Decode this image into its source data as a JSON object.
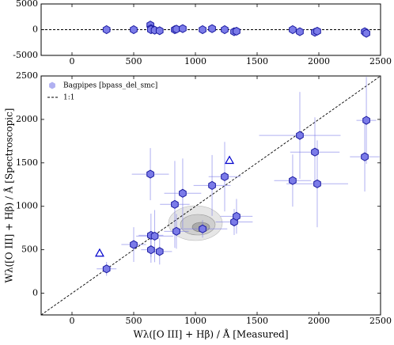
{
  "chart_data": [
    {
      "type": "scatter",
      "xlim": [
        -250,
        2500
      ],
      "xticks": [
        0,
        500,
        1000,
        1500,
        2000,
        2500
      ],
      "ylim": [
        -5000,
        5000
      ],
      "yticks": [
        -5000,
        0,
        5000
      ],
      "reference_line": 0,
      "series": [
        {
          "color": "#7b7be8",
          "edge": "#1a1aa0",
          "marker": "hexagon",
          "x": [
            280,
            500,
            635,
            640,
            640,
            670,
            710,
            833,
            846,
            897,
            1058,
            1135,
            1237,
            1314,
            1333,
            1788,
            1846,
            1968,
            1987,
            2372,
            2385
          ],
          "values": [
            0,
            0,
            900,
            200,
            0,
            -100,
            -200,
            0,
            100,
            200,
            0,
            200,
            0,
            -400,
            -300,
            0,
            -400,
            -500,
            -300,
            -400,
            -700
          ]
        }
      ]
    },
    {
      "type": "scatter",
      "xlabel": "Wλ([O III] + Hβ) / Å  [Measured]",
      "ylabel": "Wλ([O III] + Hβ) / Å  [Spectroscopic]",
      "xlim": [
        -250,
        2500
      ],
      "xticks": [
        0,
        500,
        1000,
        1500,
        2000,
        2500
      ],
      "ylim": [
        -250,
        2500
      ],
      "yticks": [
        0,
        500,
        1000,
        1500,
        2000,
        2500
      ],
      "legend": "upper left",
      "reference_name": "1:1",
      "series": [
        {
          "name": "Bagpipes [bpass_del_smc]",
          "color": "#7b7be8",
          "edge": "#1a1aa0",
          "marker": "hexagon",
          "x": [
            280,
            500,
            635,
            640,
            640,
            670,
            710,
            833,
            846,
            897,
            1058,
            1135,
            1237,
            1314,
            1333,
            1788,
            1846,
            1968,
            1987,
            2372,
            2385
          ],
          "values": [
            280,
            560,
            1370,
            666,
            500,
            657,
            480,
            1022,
            712,
            1150,
            740,
            1240,
            1341,
            820,
            885,
            1296,
            1816,
            1624,
            1259,
            1570,
            1989
          ],
          "xerr": [
            80,
            100,
            150,
            100,
            80,
            150,
            100,
            120,
            100,
            150,
            200,
            150,
            130,
            150,
            130,
            150,
            330,
            200,
            250,
            120,
            80
          ],
          "yerr": [
            80,
            200,
            300,
            250,
            150,
            300,
            150,
            500,
            200,
            400,
            100,
            350,
            400,
            150,
            200,
            300,
            500,
            400,
            500,
            400,
            500
          ]
        },
        {
          "color": "#0000cc",
          "marker": "triangle",
          "x": [
            224,
            1276
          ],
          "values": [
            456,
            1524
          ]
        }
      ]
    }
  ]
}
